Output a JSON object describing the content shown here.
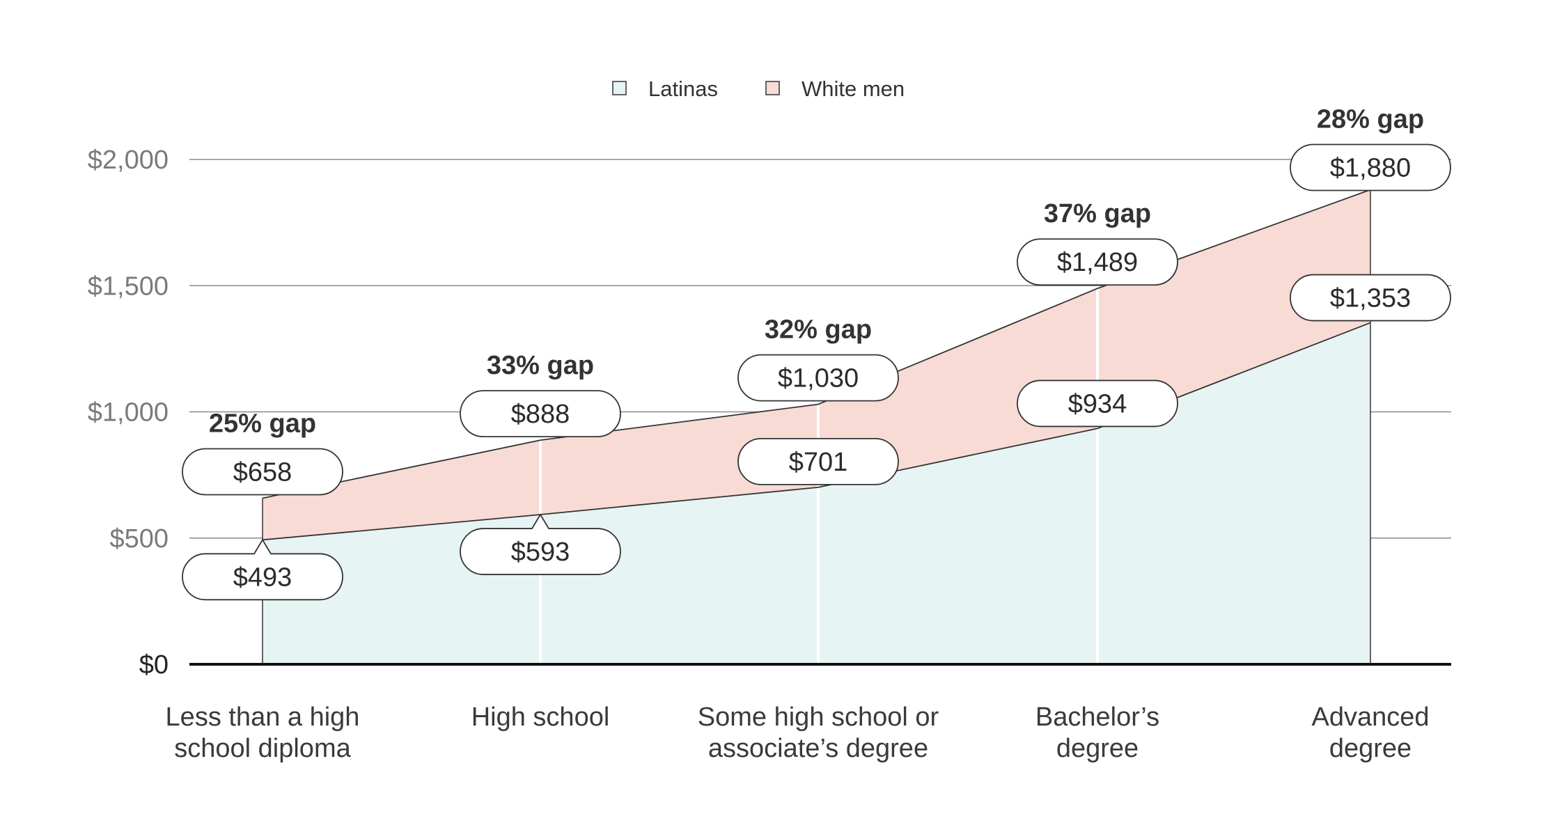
{
  "chart_data": {
    "type": "area",
    "categories": [
      [
        "Less than a high",
        "school diploma"
      ],
      [
        "High school"
      ],
      [
        "Some high school or",
        "associate’s degree"
      ],
      [
        "Bachelor’s",
        "degree"
      ],
      [
        "Advanced",
        "degree"
      ]
    ],
    "series": [
      {
        "name": "Latinas",
        "values": [
          493,
          593,
          701,
          934,
          1353
        ],
        "color": "#e6f4f3"
      },
      {
        "name": "White men",
        "values": [
          658,
          888,
          1030,
          1489,
          1880
        ],
        "color": "#f7dbd4"
      }
    ],
    "value_labels": {
      "Latinas": [
        "$493",
        "$593",
        "$701",
        "$934",
        "$1,353"
      ],
      "White men": [
        "$658",
        "$888",
        "$1,030",
        "$1,489",
        "$1,880"
      ]
    },
    "gap_labels": [
      "25% gap",
      "33% gap",
      "32% gap",
      "37% gap",
      "28% gap"
    ],
    "ylim": [
      0,
      2000
    ],
    "yticks": [
      0,
      500,
      1000,
      1500,
      2000
    ],
    "ytick_labels": [
      "$0",
      "$500",
      "$1,000",
      "$1,500",
      "$2,000"
    ],
    "legend_position": "top-center",
    "grid": true
  }
}
